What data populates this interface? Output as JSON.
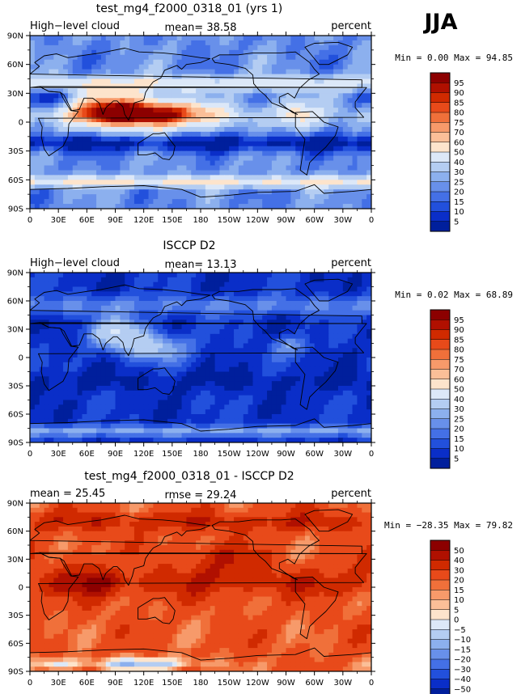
{
  "season": "JJA",
  "chart_data": [
    {
      "type": "heatmap",
      "title": "test_mg4_f2000_0318_01 (yrs 1)",
      "left_label": "High−level cloud",
      "center_label": "mean=  38.58",
      "right_label": "percent",
      "min_max": "Min =    0.00  Max =   94.85",
      "xlim": [
        0,
        360
      ],
      "ylim": [
        -90,
        90
      ],
      "x_ticks": [
        "0",
        "30E",
        "60E",
        "90E",
        "120E",
        "150E",
        "180",
        "150W",
        "120W",
        "90W",
        "60W",
        "30W",
        "0"
      ],
      "y_ticks": [
        "90N",
        "60N",
        "30N",
        "0",
        "30S",
        "60S",
        "90S"
      ],
      "colorbar_levels": [
        "95",
        "90",
        "85",
        "80",
        "75",
        "70",
        "60",
        "50",
        "40",
        "30",
        "25",
        "20",
        "15",
        "10",
        "5"
      ],
      "colorbar_colors": [
        "#8c0000",
        "#b01000",
        "#d02a00",
        "#e84a1a",
        "#f0703a",
        "#f79a6a",
        "#fbbf98",
        "#fde4cc",
        "#dce8f8",
        "#b4cdf2",
        "#8cb0ee",
        "#6890ea",
        "#4470e6",
        "#2250dc",
        "#0a2ec8",
        "#001f9c"
      ],
      "field": "model"
    },
    {
      "type": "heatmap",
      "title": "ISCCP D2",
      "left_label": "High−level cloud",
      "center_label": "mean=  13.13",
      "right_label": "percent",
      "min_max": "Min =    0.02  Max =   68.89",
      "xlim": [
        0,
        360
      ],
      "ylim": [
        -90,
        90
      ],
      "x_ticks": [
        "0",
        "30E",
        "60E",
        "90E",
        "120E",
        "150E",
        "180",
        "150W",
        "120W",
        "90W",
        "60W",
        "30W",
        "0"
      ],
      "y_ticks": [
        "90N",
        "60N",
        "30N",
        "0",
        "30S",
        "60S",
        "90S"
      ],
      "colorbar_levels": [
        "95",
        "90",
        "85",
        "80",
        "75",
        "70",
        "60",
        "50",
        "40",
        "30",
        "25",
        "20",
        "15",
        "10",
        "5"
      ],
      "colorbar_colors": [
        "#8c0000",
        "#b01000",
        "#d02a00",
        "#e84a1a",
        "#f0703a",
        "#f79a6a",
        "#fbbf98",
        "#fde4cc",
        "#dce8f8",
        "#b4cdf2",
        "#8cb0ee",
        "#6890ea",
        "#4470e6",
        "#2250dc",
        "#0a2ec8",
        "#001f9c"
      ],
      "field": "obs"
    },
    {
      "type": "heatmap",
      "title": "test_mg4_f2000_0318_01 - ISCCP D2",
      "left_label": "mean =   25.45",
      "center_label": "rmse =   29.24",
      "right_label": "percent",
      "min_max": "Min = −28.35  Max =   79.82",
      "xlim": [
        0,
        360
      ],
      "ylim": [
        -90,
        90
      ],
      "x_ticks": [
        "0",
        "30E",
        "60E",
        "90E",
        "120E",
        "150E",
        "180",
        "150W",
        "120W",
        "90W",
        "60W",
        "30W",
        "0"
      ],
      "y_ticks": [
        "90N",
        "60N",
        "30N",
        "0",
        "30S",
        "60S",
        "90S"
      ],
      "colorbar_levels": [
        "50",
        "40",
        "30",
        "20",
        "15",
        "10",
        "5",
        "0",
        "−5",
        "−10",
        "−15",
        "−20",
        "−30",
        "−40",
        "−50"
      ],
      "colorbar_colors": [
        "#8c0000",
        "#b01000",
        "#d02a00",
        "#e84a1a",
        "#f0703a",
        "#f79a6a",
        "#fbbf98",
        "#fde4cc",
        "#dce8f8",
        "#b4cdf2",
        "#8cb0ee",
        "#6890ea",
        "#4470e6",
        "#2250dc",
        "#0a2ec8",
        "#001f9c"
      ],
      "field": "diff"
    }
  ]
}
